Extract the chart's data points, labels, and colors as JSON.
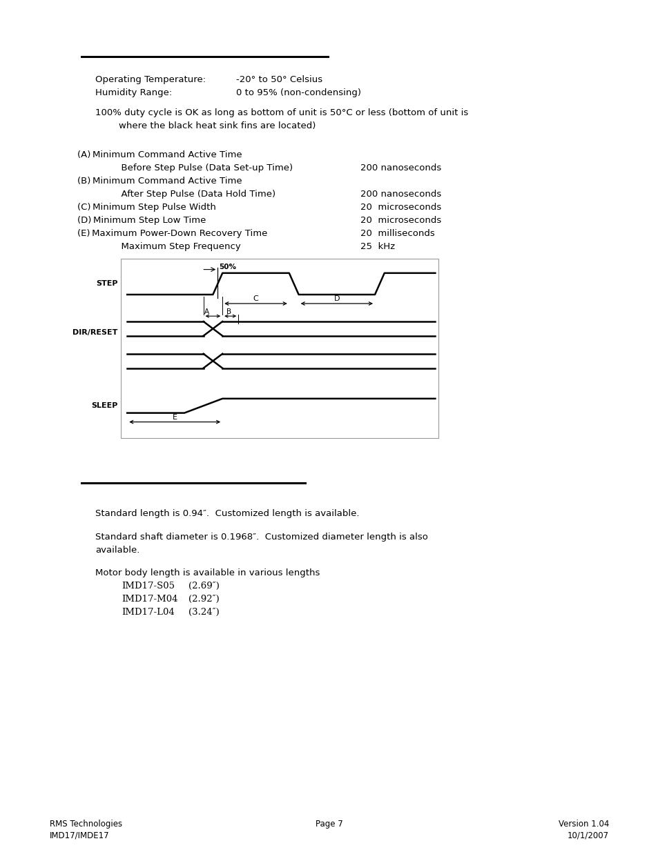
{
  "bg_color": "#ffffff",
  "text_color": "#000000",
  "page_width": 9.54,
  "page_height": 12.35,
  "op_temp_label": "Operating Temperature:",
  "op_temp_value": "-20° to 50° Celsius",
  "humidity_label": "Humidity Range:",
  "humidity_value": "0 to 95% (non-condensing)",
  "duty_cycle_line1": "100% duty cycle is OK as long as bottom of unit is 50°C or less (bottom of unit is",
  "duty_cycle_line2": "where the black heat sink fins are located)",
  "spec_A_line1": "(A) Minimum Command Active Time",
  "spec_A_line2": "      Before Step Pulse (Data Set-up Time)",
  "spec_A_value": "200 nanoseconds",
  "spec_B_line1": "(B) Minimum Command Active Time",
  "spec_B_line2": "      After Step Pulse (Data Hold Time)",
  "spec_B_value": "200 nanoseconds",
  "spec_C": "(C) Minimum Step Pulse Width",
  "spec_C_value": "20  microseconds",
  "spec_D": "(D) Minimum Step Low Time",
  "spec_D_value": "20  microseconds",
  "spec_E": "(E) Maximum Power-Down Recovery Time",
  "spec_E_value": "20  milliseconds",
  "spec_F": "      Maximum Step Frequency",
  "spec_F_value": "25  kHz",
  "mech_line1": "Standard length is 0.94″.  Customized length is available.",
  "mech_line2a": "Standard shaft diameter is 0.1968″.  Customized diameter length is also",
  "mech_line2b": "available.",
  "mech_line3": "Motor body length is available in various lengths",
  "imd_s05": "IMD17-S05",
  "imd_s05_val": "(2.69″)",
  "imd_m04": "IMD17-M04",
  "imd_m04_val": "(2.92″)",
  "imd_l04": "IMD17-L04",
  "imd_l04_val": "(3.24″)",
  "footer_left1": "RMS Technologies",
  "footer_left2": "IMD17/IMDE17",
  "footer_center": "Page 7",
  "footer_right1": "Version 1.04",
  "footer_right2": "10/1/2007"
}
